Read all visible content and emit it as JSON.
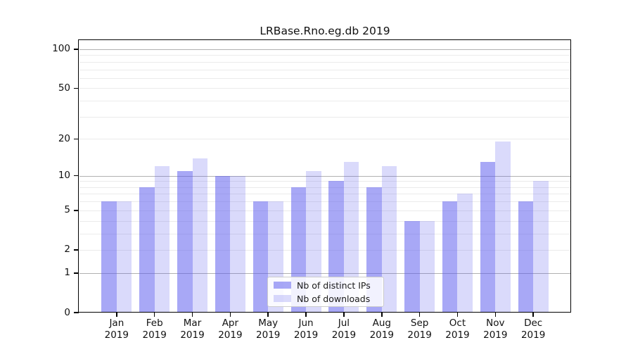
{
  "chart_data": {
    "type": "bar",
    "title": "LRBase.Rno.eg.db 2019",
    "x_months": [
      "Jan",
      "Feb",
      "Mar",
      "Apr",
      "May",
      "Jun",
      "Jul",
      "Aug",
      "Sep",
      "Oct",
      "Nov",
      "Dec"
    ],
    "x_year": "2019",
    "categories": [
      "Jan 2019",
      "Feb 2019",
      "Mar 2019",
      "Apr 2019",
      "May 2019",
      "Jun 2019",
      "Jul 2019",
      "Aug 2019",
      "Sep 2019",
      "Oct 2019",
      "Nov 2019",
      "Dec 2019"
    ],
    "series": [
      {
        "name": "Nb of distinct IPs",
        "color": "rgba(88,88,238,0.52)",
        "values": [
          6,
          8,
          11,
          10,
          6,
          8,
          9,
          8,
          4,
          6,
          13,
          6
        ]
      },
      {
        "name": "Nb of downloads",
        "color": "rgba(88,88,238,0.22)",
        "values": [
          6,
          12,
          14,
          10,
          6,
          11,
          13,
          12,
          4,
          7,
          19,
          9
        ]
      }
    ],
    "y_scale": "log1p",
    "ylim": [
      0,
      117
    ],
    "y_axis_ticks": [
      100,
      50,
      20,
      10,
      5,
      2,
      1,
      0
    ],
    "y_major_gridlines": [
      1,
      10,
      100
    ],
    "y_minor_gridlines": [
      2,
      3,
      4,
      5,
      6,
      7,
      8,
      9,
      20,
      30,
      40,
      50,
      60,
      70,
      80,
      90
    ],
    "grid": true,
    "legend_position": "lower center",
    "colors": {
      "major_grid": "#b1b1b1",
      "minor_grid": "#ebebeb",
      "axis": "#000000",
      "text": "#111111",
      "legend_border": "#cccccc",
      "legend_bg": "rgba(255,255,255,0.85)"
    }
  }
}
